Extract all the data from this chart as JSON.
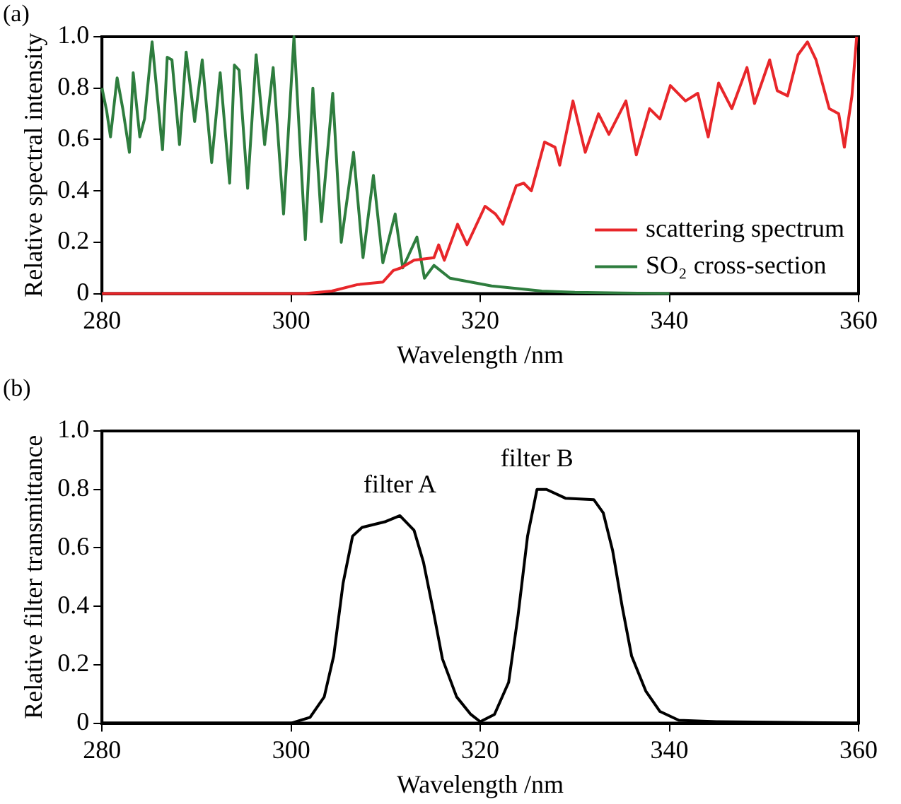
{
  "chart_data": [
    {
      "type": "line",
      "title": "(a)",
      "xlabel": "Wavelength /nm",
      "ylabel": "Relative spectral intensity",
      "xlim": [
        280,
        360
      ],
      "ylim": [
        0,
        1
      ],
      "xticks": [
        280,
        300,
        320,
        340,
        360
      ],
      "yticks": [
        0,
        0.2,
        0.4,
        0.6,
        0.8,
        {
          "value": 1,
          "label": "1.0"
        }
      ],
      "legend": "bottom right",
      "marker": "none",
      "series": [
        {
          "name": "scattering spectrum",
          "color": "#e8262a",
          "x": [
            280,
            301.5,
            304.3,
            307,
            309.7,
            310.8,
            311.6,
            313,
            315.1,
            315.6,
            316.2,
            317.6,
            318.6,
            320.5,
            321.6,
            322.4,
            323.8,
            324.6,
            325.4,
            326.8,
            327.9,
            328.4,
            329.8,
            331.1,
            332.5,
            333.6,
            335.4,
            336.5,
            337.9,
            339,
            340.1,
            341.7,
            343,
            344.1,
            345.2,
            346.6,
            348.2,
            349,
            350.6,
            351.4,
            352.5,
            353.6,
            354.6,
            355.5,
            356.9,
            357.9,
            358.5,
            359.3,
            359.8
          ],
          "values": [
            0,
            0,
            0.01,
            0.035,
            0.045,
            0.09,
            0.1,
            0.13,
            0.14,
            0.19,
            0.13,
            0.27,
            0.19,
            0.34,
            0.31,
            0.27,
            0.42,
            0.43,
            0.4,
            0.59,
            0.57,
            0.5,
            0.75,
            0.55,
            0.7,
            0.62,
            0.75,
            0.54,
            0.72,
            0.68,
            0.81,
            0.75,
            0.78,
            0.61,
            0.82,
            0.72,
            0.88,
            0.74,
            0.91,
            0.79,
            0.77,
            0.93,
            0.98,
            0.91,
            0.72,
            0.7,
            0.57,
            0.77,
            1
          ]
        },
        {
          "name": "SO₂ cross-section",
          "color": "#2e7d3e",
          "x": [
            280,
            280.5,
            280.9,
            281.6,
            282.2,
            282.9,
            283.3,
            284,
            284.5,
            285.3,
            286.4,
            286.9,
            287.4,
            288.2,
            288.9,
            289.8,
            290.6,
            291.6,
            292.5,
            293.5,
            294,
            294.5,
            295.4,
            296.3,
            297.2,
            298.1,
            299.2,
            300.3,
            301.5,
            302.3,
            303.2,
            304.4,
            305.3,
            306.6,
            307.6,
            308.7,
            309.7,
            311,
            311.8,
            313.3,
            314.1,
            315.1,
            316.8,
            319,
            321.2,
            323.8,
            326.5,
            330,
            335,
            340
          ],
          "values": [
            0.8,
            0.71,
            0.61,
            0.84,
            0.72,
            0.55,
            0.86,
            0.61,
            0.68,
            0.98,
            0.56,
            0.92,
            0.91,
            0.58,
            0.94,
            0.67,
            0.91,
            0.51,
            0.86,
            0.43,
            0.89,
            0.87,
            0.41,
            0.93,
            0.58,
            0.88,
            0.31,
            1.0,
            0.21,
            0.8,
            0.28,
            0.78,
            0.2,
            0.55,
            0.14,
            0.46,
            0.12,
            0.31,
            0.1,
            0.22,
            0.06,
            0.11,
            0.06,
            0.045,
            0.03,
            0.02,
            0.01,
            0.005,
            0.002,
            0
          ]
        }
      ]
    },
    {
      "type": "line",
      "title": "(b)",
      "xlabel": "Wavelength /nm",
      "ylabel": "Relative filter transmittance",
      "xlim": [
        280,
        360
      ],
      "ylim": [
        0,
        1
      ],
      "xticks": [
        280,
        300,
        320,
        340,
        360
      ],
      "yticks": [
        0,
        0.2,
        0.4,
        0.6,
        0.8,
        {
          "value": 1,
          "label": "1.0"
        }
      ],
      "marker": "none",
      "annotations": [
        {
          "text": "filter A",
          "x": 311.5,
          "y": 0.71
        },
        {
          "text": "filter B",
          "x": 326,
          "y": 0.8
        }
      ],
      "series": [
        {
          "color": "#000000",
          "x": [
            280,
            300,
            302,
            303.5,
            304.5,
            305.5,
            306.5,
            307.5,
            310,
            311.5,
            313,
            314,
            315,
            316,
            317.5,
            319,
            320,
            321.5,
            323,
            324,
            325,
            326,
            327,
            329,
            332,
            333,
            334,
            335,
            336,
            337.5,
            339,
            341,
            345,
            360
          ],
          "values": [
            0,
            0,
            0.02,
            0.09,
            0.23,
            0.48,
            0.64,
            0.67,
            0.69,
            0.71,
            0.66,
            0.55,
            0.39,
            0.22,
            0.09,
            0.03,
            0.005,
            0.03,
            0.14,
            0.37,
            0.64,
            0.8,
            0.8,
            0.77,
            0.765,
            0.72,
            0.59,
            0.4,
            0.23,
            0.11,
            0.04,
            0.01,
            0.005,
            0
          ]
        }
      ]
    }
  ]
}
